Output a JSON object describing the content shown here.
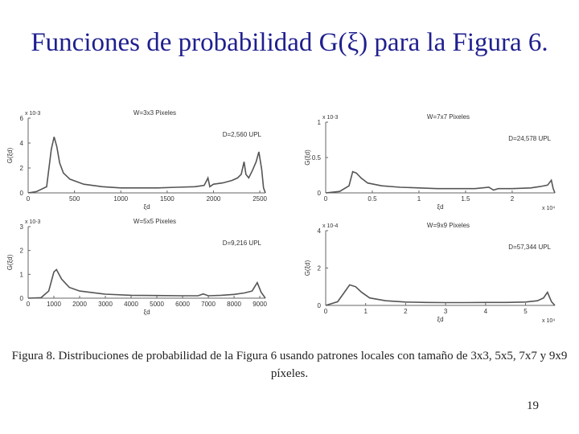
{
  "title": "Funciones de probabilidad G(ξ) para la Figura 6.",
  "caption": "Figura 8. Distribuciones de probabilidad de la Figura 6 usando patrones locales con tamaño de 3x3, 5x5, 7x7 y 9x9 píxeles.",
  "page_number": "19",
  "colors": {
    "title": "#1f1f8f",
    "trace": "#555555"
  },
  "chart_data": [
    {
      "type": "line",
      "title": "W=3x3 Pixeles",
      "annotation": "D=2,560 UPL",
      "xlabel": "ξd",
      "ylabel": "G(ξd)",
      "xlim": [
        0,
        2560
      ],
      "ylim": [
        0,
        0.006
      ],
      "yexp": "x 10-3",
      "xticks": [
        0,
        500,
        1000,
        1500,
        2000,
        2500
      ],
      "yticks": [
        0,
        0.002,
        0.004,
        0.006
      ],
      "yticklabels": [
        "0",
        "2",
        "4",
        "6"
      ],
      "series": [
        {
          "x": [
            0,
            90,
            200,
            250,
            280,
            310,
            340,
            380,
            450,
            600,
            800,
            1000,
            1200,
            1400,
            1600,
            1800,
            1900,
            1940,
            1960,
            1980,
            2000,
            2100,
            2200,
            2260,
            2300,
            2330,
            2350,
            2380,
            2420,
            2460,
            2490,
            2520,
            2540,
            2560
          ],
          "y": [
            0,
            0.0001,
            0.0005,
            0.0035,
            0.0045,
            0.0037,
            0.0024,
            0.0016,
            0.0011,
            0.0007,
            0.0005,
            0.0004,
            0.0004,
            0.0004,
            0.00045,
            0.0005,
            0.0006,
            0.0012,
            0.0005,
            0.0006,
            0.0007,
            0.0008,
            0.001,
            0.0012,
            0.0015,
            0.0025,
            0.0015,
            0.0012,
            0.0018,
            0.0025,
            0.0033,
            0.0019,
            0.0004,
            0
          ]
        }
      ]
    },
    {
      "type": "line",
      "title": "W=7x7 Pixeles",
      "annotation": "D=24,578 UPL",
      "xlabel": "ξd",
      "ylabel": "G(ξd)",
      "xlim": [
        0,
        24578
      ],
      "ylim": [
        0,
        0.001
      ],
      "yexp": "x 10-3",
      "xexp": "x 10⁴",
      "xticks": [
        0,
        5000,
        10000,
        15000,
        20000
      ],
      "xticklabels": [
        "0",
        "0.5",
        "1",
        "1.5",
        "2"
      ],
      "yticks": [
        0,
        0.0005,
        0.001
      ],
      "yticklabels": [
        "0",
        "0.5",
        "1"
      ],
      "series": [
        {
          "x": [
            0,
            1500,
            2500,
            2900,
            3300,
            3800,
            4500,
            6000,
            8000,
            10000,
            12000,
            14000,
            16000,
            17500,
            18000,
            18500,
            20000,
            22000,
            23000,
            23800,
            24200,
            24400,
            24578
          ],
          "y": [
            0,
            2e-05,
            0.0001,
            0.0003,
            0.00028,
            0.00021,
            0.00014,
            0.0001,
            8e-05,
            7e-05,
            6e-05,
            6e-05,
            6e-05,
            8e-05,
            4e-05,
            6e-05,
            6e-05,
            7e-05,
            9e-05,
            0.00011,
            0.00018,
            6e-05,
            0
          ]
        }
      ]
    },
    {
      "type": "line",
      "title": "W=5x5 Pixeles",
      "annotation": "D=9,216 UPL",
      "xlabel": "ξd",
      "ylabel": "G(ξd)",
      "xlim": [
        0,
        9216
      ],
      "ylim": [
        0,
        0.003
      ],
      "yexp": "x 10-3",
      "xticks": [
        0,
        1000,
        2000,
        3000,
        4000,
        5000,
        6000,
        7000,
        8000,
        9000
      ],
      "yticks": [
        0,
        0.001,
        0.002,
        0.003
      ],
      "yticklabels": [
        "0",
        "1",
        "2",
        "3"
      ],
      "series": [
        {
          "x": [
            0,
            500,
            800,
            1000,
            1100,
            1300,
            1600,
            2000,
            3000,
            4000,
            5000,
            6000,
            6600,
            6800,
            7000,
            7500,
            8000,
            8400,
            8700,
            8900,
            9050,
            9216
          ],
          "y": [
            0,
            2e-05,
            0.0003,
            0.0011,
            0.0012,
            0.0008,
            0.00045,
            0.0003,
            0.00017,
            0.00012,
            0.00011,
            0.0001,
            0.0001,
            0.00018,
            0.0001,
            0.00012,
            0.00016,
            0.00022,
            0.0003,
            0.00065,
            0.00025,
            0
          ]
        }
      ]
    },
    {
      "type": "line",
      "title": "W=9x9 Pixeles",
      "annotation": "D=57,344 UPL",
      "xlabel": "ξd",
      "ylabel": "G(ξd)",
      "xlim": [
        0,
        57344
      ],
      "ylim": [
        0,
        0.0004
      ],
      "yexp": "x 10-4",
      "xexp": "x 10⁴",
      "xticks": [
        0,
        10000,
        20000,
        30000,
        40000,
        50000
      ],
      "xticklabels": [
        "0",
        "1",
        "2",
        "3",
        "4",
        "5"
      ],
      "yticks": [
        0,
        0.0002,
        0.0004
      ],
      "yticklabels": [
        "0",
        "2",
        "4"
      ],
      "series": [
        {
          "x": [
            0,
            3000,
            5000,
            6000,
            7500,
            9000,
            11000,
            15000,
            20000,
            25000,
            30000,
            35000,
            40000,
            45000,
            50000,
            53000,
            54500,
            55500,
            56500,
            57344
          ],
          "y": [
            0,
            2e-05,
            8e-05,
            0.00011,
            0.0001,
            7e-05,
            4e-05,
            2.5e-05,
            1.8e-05,
            1.6e-05,
            1.5e-05,
            1.5e-05,
            1.6e-05,
            1.6e-05,
            1.8e-05,
            2.5e-05,
            4e-05,
            7e-05,
            2e-05,
            0
          ]
        }
      ]
    }
  ]
}
